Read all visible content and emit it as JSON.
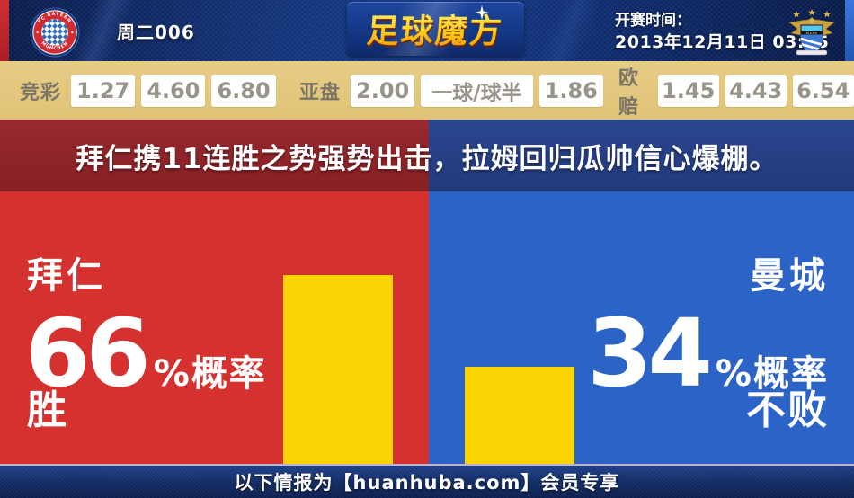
{
  "header": {
    "match_code": "周二006",
    "brand": "足球魔方",
    "kickoff_label": "开赛时间：",
    "kickoff_datetime": "2013年12月11日 03:45",
    "bayern_ring_top": "FC BAYERN",
    "bayern_ring_bottom": "MÜNCHEN",
    "city_band": "M.C.F.C"
  },
  "odds": {
    "groups": [
      {
        "label": "竞彩",
        "values": [
          "1.27",
          "4.60",
          "6.80"
        ]
      },
      {
        "label": "亚盘",
        "values": [
          "2.00",
          "一球/球半",
          "1.86"
        ]
      },
      {
        "label": "欧赔",
        "values": [
          "1.45",
          "4.43",
          "6.54"
        ]
      }
    ]
  },
  "headline": "拜仁携11连胜之势强势出击，拉姆回归瓜帅信心爆棚。",
  "prediction": {
    "home": {
      "team": "拜仁",
      "percent": "66",
      "suffix": "%概率",
      "outcome": "胜"
    },
    "away": {
      "team": "曼城",
      "percent": "34",
      "suffix": "%概率",
      "outcome": "不败"
    }
  },
  "footer": {
    "text": "以下情报为【huanhuba.com】会员专享"
  },
  "colors": {
    "home_red": "#d4312f",
    "away_blue": "#2b63c6",
    "home_dark_red": "#8e2227",
    "away_dark_blue": "#253f86",
    "bar_yellow": "#fcd303",
    "odds_tan": "#e3c77e",
    "header_navy": "#133378",
    "footer_navy": "#122a61",
    "brand_gold": "#ffcf1d"
  },
  "chart_data": {
    "type": "bar",
    "categories": [
      "拜仁",
      "曼城"
    ],
    "values": [
      66,
      34
    ],
    "unit": "%概率",
    "outcomes": [
      "胜",
      "不败"
    ],
    "bar_color": "#fcd303"
  }
}
